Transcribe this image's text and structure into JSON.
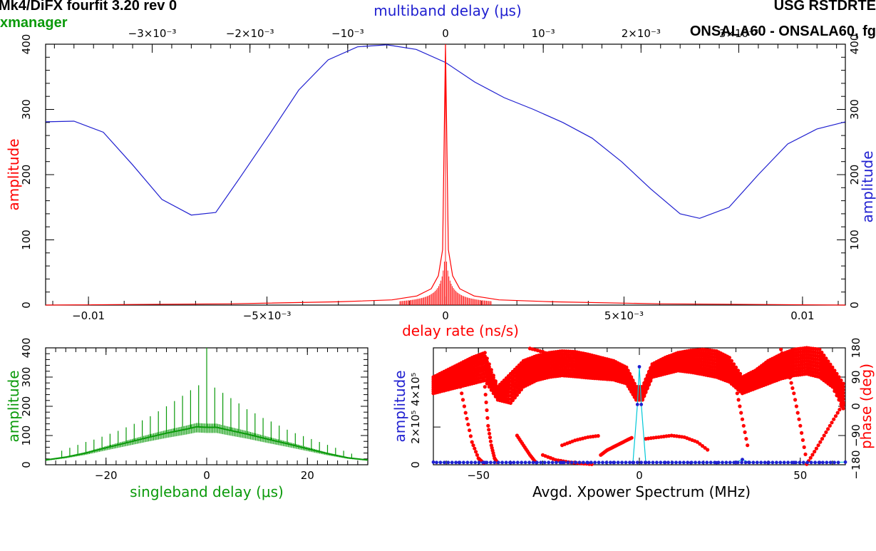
{
  "header": {
    "top_left": "Mk4/DiFX fourfit 3.20 rev 0",
    "top_right": "USG RSTDRTE",
    "subtitle_left": "xmanager",
    "subtitle_right": "ONSALA60 - ONSALA60, fg"
  },
  "colors": {
    "red": "#ff0000",
    "blue": "#1f1fd0",
    "green": "#0a9a0a",
    "cyan": "#00c8d8",
    "axis": "#000000"
  },
  "chart_data": [
    {
      "id": "main",
      "type": "line",
      "xlabel": "delay rate (ns/s)",
      "ylabel": "amplitude",
      "x2label": "multiband delay (μs)",
      "y2label": "amplitude",
      "xlim": [
        -0.0112,
        0.0112
      ],
      "ylim": [
        0,
        400
      ],
      "x2lim": [
        -0.00409,
        0.00409
      ],
      "xticks": [
        {
          "v": -0.01,
          "t": "−0.01"
        },
        {
          "v": -0.005,
          "t": "−5×10⁻³"
        },
        {
          "v": 0,
          "t": "0"
        },
        {
          "v": 0.005,
          "t": "5×10⁻³"
        },
        {
          "v": 0.01,
          "t": "0.01"
        }
      ],
      "x2ticks": [
        {
          "v": -0.003,
          "t": "−3×10⁻³"
        },
        {
          "v": -0.002,
          "t": "−2×10⁻³"
        },
        {
          "v": -0.001,
          "t": "−10⁻³"
        },
        {
          "v": 0,
          "t": "0"
        },
        {
          "v": 0.001,
          "t": "10⁻³"
        },
        {
          "v": 0.002,
          "t": "2×10⁻³"
        },
        {
          "v": 0.003,
          "t": "3×10⁻³"
        }
      ],
      "yticks": [
        {
          "v": 0,
          "t": "0"
        },
        {
          "v": 100,
          "t": "100"
        },
        {
          "v": 200,
          "t": "200"
        },
        {
          "v": 300,
          "t": "300"
        },
        {
          "v": 400,
          "t": "400"
        }
      ],
      "series": [
        {
          "axis": "top",
          "color": "blue",
          "x": [
            -0.00409,
            -0.0038,
            -0.0035,
            -0.0032,
            -0.0029,
            -0.0026,
            -0.00235,
            -0.0021,
            -0.0018,
            -0.0015,
            -0.0012,
            -0.0009,
            -0.0006,
            -0.0003,
            0,
            0.0003,
            0.0006,
            0.0009,
            0.0012,
            0.0015,
            0.0018,
            0.0021,
            0.0024,
            0.0026,
            0.0029,
            0.0032,
            0.0035,
            0.0038,
            0.00409
          ],
          "y": [
            281,
            282,
            265,
            215,
            162,
            138,
            142,
            196,
            262,
            330,
            376,
            396,
            399,
            392,
            372,
            342,
            318,
            300,
            280,
            256,
            220,
            178,
            140,
            133,
            150,
            200,
            247,
            270,
            281
          ]
        },
        {
          "axis": "bottom",
          "color": "red",
          "x": [
            -0.0112,
            -0.006,
            -0.003,
            -0.0015,
            -0.0008,
            -0.0004,
            -0.0002,
            -8e-05,
            0,
            8e-05,
            0.0002,
            0.0004,
            0.0008,
            0.0015,
            0.003,
            0.006,
            0.0112
          ],
          "y": [
            0,
            2,
            5,
            8,
            14,
            25,
            45,
            85,
            400,
            85,
            45,
            25,
            14,
            8,
            5,
            2,
            0
          ]
        }
      ]
    },
    {
      "id": "singleband",
      "type": "line",
      "xlabel": "singleband delay (μs)",
      "ylabel": "amplitude",
      "xlim": [
        -32,
        32
      ],
      "ylim": [
        0,
        400
      ],
      "xticks": [
        {
          "v": -20,
          "t": "−20"
        },
        {
          "v": 0,
          "t": "0"
        },
        {
          "v": 20,
          "t": "20"
        }
      ],
      "yticks": [
        {
          "v": 0,
          "t": "0"
        },
        {
          "v": 100,
          "t": "100"
        },
        {
          "v": 200,
          "t": "200"
        },
        {
          "v": 300,
          "t": "300"
        },
        {
          "v": 400,
          "t": "400"
        }
      ],
      "series": [
        {
          "color": "green",
          "x": [
            -32,
            -28,
            -24,
            -20,
            -16,
            -12,
            -8,
            -4,
            -2,
            0,
            2,
            4,
            8,
            12,
            16,
            20,
            24,
            28,
            32
          ],
          "y": [
            16,
            26,
            40,
            58,
            75,
            92,
            108,
            122,
            130,
            128,
            128,
            120,
            105,
            88,
            72,
            55,
            38,
            24,
            16
          ]
        }
      ],
      "spikes": [
        {
          "x": 0,
          "y": 400
        },
        {
          "x": -1.6,
          "y": 272
        },
        {
          "x": 1.6,
          "y": 264
        },
        {
          "x": -3.2,
          "y": 255
        },
        {
          "x": 3.2,
          "y": 246
        },
        {
          "x": -4.8,
          "y": 236
        },
        {
          "x": 4.8,
          "y": 228
        },
        {
          "x": -6.4,
          "y": 218
        },
        {
          "x": 6.4,
          "y": 210
        },
        {
          "x": -8,
          "y": 200
        },
        {
          "x": 8,
          "y": 190
        },
        {
          "x": -9.6,
          "y": 183
        },
        {
          "x": 9.6,
          "y": 176
        },
        {
          "x": -11.2,
          "y": 166
        },
        {
          "x": 11.2,
          "y": 160
        },
        {
          "x": -12.8,
          "y": 152
        },
        {
          "x": 12.8,
          "y": 148
        },
        {
          "x": -14.4,
          "y": 140
        },
        {
          "x": 14.4,
          "y": 134
        },
        {
          "x": -16,
          "y": 128
        },
        {
          "x": 16,
          "y": 120
        },
        {
          "x": -17.6,
          "y": 116
        },
        {
          "x": 17.6,
          "y": 108
        },
        {
          "x": -19.2,
          "y": 106
        },
        {
          "x": 19.2,
          "y": 98
        },
        {
          "x": -20.8,
          "y": 96
        },
        {
          "x": 20.8,
          "y": 88
        },
        {
          "x": -22.4,
          "y": 86
        },
        {
          "x": 22.4,
          "y": 78
        },
        {
          "x": -24,
          "y": 78
        },
        {
          "x": 24,
          "y": 68
        },
        {
          "x": -25.6,
          "y": 68
        },
        {
          "x": 25.6,
          "y": 58
        },
        {
          "x": -27.2,
          "y": 58
        },
        {
          "x": 27.2,
          "y": 48
        },
        {
          "x": -28.8,
          "y": 48
        },
        {
          "x": 28.8,
          "y": 38
        }
      ]
    },
    {
      "id": "xpower",
      "type": "scatter",
      "xlabel": "Avgd. Xpower Spectrum (MHz)",
      "ylabel": "amplitude",
      "y2label": "phase (deg)",
      "xlim": [
        -64,
        64
      ],
      "ylim": [
        0,
        620000
      ],
      "y2lim": [
        -180,
        180
      ],
      "xticks": [
        {
          "v": -50,
          "t": "−50"
        },
        {
          "v": 0,
          "t": "0"
        },
        {
          "v": 50,
          "t": "50"
        }
      ],
      "yticks": [
        {
          "v": 0,
          "t": "0"
        },
        {
          "v": 200000,
          "t": "2×10⁵"
        },
        {
          "v": 400000,
          "t": "4×10⁵"
        }
      ],
      "y2ticks": [
        {
          "v": -180,
          "t": "−180"
        },
        {
          "v": -90,
          "t": "−90"
        },
        {
          "v": 0,
          "t": "0"
        },
        {
          "v": 90,
          "t": "90"
        },
        {
          "v": 180,
          "t": "180"
        }
      ],
      "series": [
        {
          "name": "amplitude",
          "color": "blue",
          "line_color": "cyan",
          "x": [
            -64,
            -56,
            -48,
            -40,
            -32,
            -24,
            -16,
            -8,
            -2,
            -0.6,
            0,
            0.6,
            2,
            8,
            16,
            24,
            30,
            32,
            34,
            40,
            48,
            56,
            64
          ],
          "y": [
            14000,
            12000,
            12000,
            11000,
            11000,
            12000,
            11000,
            12000,
            12000,
            320000,
            520000,
            320000,
            12000,
            12000,
            11000,
            11000,
            13000,
            28000,
            13000,
            11000,
            12000,
            12000,
            14000
          ]
        },
        {
          "name": "phase",
          "color": "red",
          "bands": [
            {
              "x": [
                -64,
                -60,
                -56,
                -52,
                -48,
                -44,
                -40,
                -36,
                -32,
                -28,
                -24,
                -20,
                -16,
                -12,
                -8,
                -4,
                -1,
                1,
                4,
                8,
                12,
                16,
                20,
                24,
                28,
                32,
                36,
                40,
                44,
                48,
                52,
                56,
                60,
                64
              ],
              "lo": [
                40,
                50,
                60,
                70,
                80,
                20,
                10,
                60,
                80,
                90,
                95,
                92,
                88,
                85,
                82,
                70,
                20,
                20,
                90,
                100,
                110,
                105,
                98,
                90,
                75,
                40,
                55,
                70,
                85,
                95,
                100,
                90,
                60,
                -20
              ],
              "hi": [
                90,
                110,
                130,
                150,
                165,
                60,
                100,
                140,
                155,
                165,
                170,
                168,
                160,
                150,
                140,
                120,
                60,
                60,
                130,
                150,
                165,
                172,
                175,
                170,
                150,
                90,
                110,
                140,
                160,
                175,
                180,
                175,
                120,
                60
              ]
            }
          ],
          "strands": [
            {
              "x": [
                -49,
                -48,
                -47,
                -46,
                -45,
                -44
              ],
              "y": [
                160,
                60,
                -60,
                -120,
                -160,
                -175
              ]
            },
            {
              "x": [
                -56,
                -54,
                -52,
                -50,
                -48
              ],
              "y": [
                80,
                -20,
                -110,
                -160,
                -178
              ]
            },
            {
              "x": [
                -30,
                -26,
                -22,
                -18,
                -14
              ],
              "y": [
                -150,
                -165,
                -172,
                -176,
                -179
              ]
            },
            {
              "x": [
                -12,
                -10,
                -8,
                -6,
                -4,
                -2
              ],
              "y": [
                -150,
                -135,
                -125,
                -115,
                -105,
                -95
              ]
            },
            {
              "x": [
                -24,
                -20,
                -16,
                -12
              ],
              "y": [
                -120,
                -105,
                -95,
                -90
              ]
            },
            {
              "x": [
                2,
                6,
                10,
                14,
                18,
                22
              ],
              "y": [
                -100,
                -95,
                -90,
                -95,
                -110,
                -140
              ]
            },
            {
              "x": [
                -38,
                -36,
                -34,
                -32
              ],
              "y": [
                -90,
                -120,
                -150,
                -175
              ]
            },
            {
              "x": [
                30,
                32,
                34
              ],
              "y": [
                60,
                -40,
                -140
              ]
            },
            {
              "x": [
                44,
                46,
                48,
                50,
                52
              ],
              "y": [
                175,
                120,
                40,
                -60,
                -170
              ]
            },
            {
              "x": [
                52,
                55,
                58,
                61,
                64
              ],
              "y": [
                -178,
                -130,
                -80,
                -30,
                20
              ]
            },
            {
              "x": [
                -34,
                -30,
                -26,
                -22,
                -18,
                -14,
                -10,
                -6
              ],
              "y": [
                178,
                168,
                150,
                130,
                112,
                100,
                92,
                88
              ]
            }
          ]
        }
      ]
    }
  ]
}
